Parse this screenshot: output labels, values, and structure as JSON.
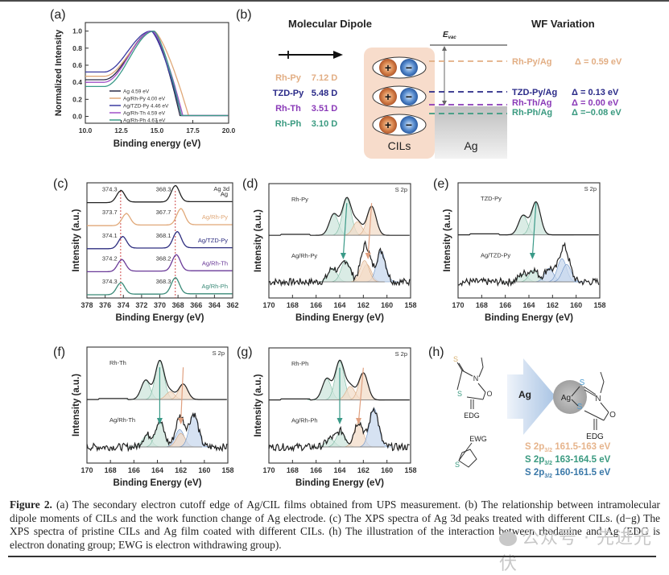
{
  "panel_labels": {
    "a": "(a)",
    "b": "(b)",
    "c": "(c)",
    "d": "(d)",
    "e": "(e)",
    "f": "(f)",
    "g": "(g)",
    "h": "(h)"
  },
  "chart_data": [
    {
      "id": "a",
      "type": "line",
      "title": "",
      "xlabel": "Binding energy (eV)",
      "ylabel": "Normalized Intensity",
      "xlim": [
        10.0,
        20.0
      ],
      "ylim": [
        -0.08,
        1.1
      ],
      "xticks": [
        "10.0",
        "12.5",
        "15.0",
        "17.5",
        "20.0"
      ],
      "xtick_values": [
        10.0,
        12.5,
        15.0,
        17.5,
        20.0
      ],
      "yticks": [
        "0.0",
        "0.2",
        "0.4",
        "0.6",
        "0.8",
        "1.0"
      ],
      "ytick_values": [
        0.0,
        0.2,
        0.4,
        0.6,
        0.8,
        1.0
      ],
      "legend_position": "bottom-left",
      "series": [
        {
          "name": "Ag 4.59 eV",
          "color": "#2a2a45",
          "baseline": 0.43,
          "peak_x": 14.7,
          "cutoff": 16.6
        },
        {
          "name": "Ag/Rh-Py 4.00 eV",
          "color": "#e0a878",
          "baseline": 0.47,
          "peak_x": 14.8,
          "cutoff": 17.2
        },
        {
          "name": "Ag/TZD-Py 4.46 eV",
          "color": "#3a3aa0",
          "baseline": 0.52,
          "peak_x": 14.6,
          "cutoff": 16.7
        },
        {
          "name": "Ag/Rh-Th 4.59 eV",
          "color": "#a050c8",
          "baseline": 0.4,
          "peak_x": 14.7,
          "cutoff": 16.8
        },
        {
          "name": "Ag/Rh-Ph 4.67 eV",
          "color": "#3a9a88",
          "baseline": 0.35,
          "peak_x": 14.8,
          "cutoff": 16.7
        }
      ]
    },
    {
      "id": "c",
      "type": "line",
      "title": "Ag 3d",
      "xlabel": "Binding Energy (eV)",
      "ylabel": "Intensity (a.u.)",
      "xlim": [
        378,
        362
      ],
      "xticks": [
        "378",
        "376",
        "374",
        "372",
        "370",
        "368",
        "366",
        "364",
        "362"
      ],
      "xtick_values": [
        378,
        376,
        374,
        372,
        370,
        368,
        366,
        364,
        362
      ],
      "reference_lines": [
        374.3,
        368.3
      ],
      "series": [
        {
          "name": "Ag",
          "color": "#222222",
          "peak1": 374.3,
          "peak2": 368.3,
          "label1": "374.3",
          "label2": "368.3"
        },
        {
          "name": "Ag/Rh-Py",
          "color": "#e0a878",
          "peak1": 373.7,
          "peak2": 367.7,
          "label1": "373.7",
          "label2": "367.7"
        },
        {
          "name": "Ag/TZD-Py",
          "color": "#2e2e80",
          "peak1": 374.1,
          "peak2": 368.1,
          "label1": "374.1",
          "label2": "368.1"
        },
        {
          "name": "Ag/Rh-Th",
          "color": "#6a3a98",
          "peak1": 374.2,
          "peak2": 368.2,
          "label1": "374.2",
          "label2": "368.2"
        },
        {
          "name": "Ag/Rh-Ph",
          "color": "#3a8a78",
          "peak1": 374.3,
          "peak2": 368.3,
          "label1": "374.3",
          "label2": "368.3"
        }
      ]
    },
    {
      "id": "d",
      "type": "line",
      "title": "S 2p",
      "xlabel": "Binding Energy (eV)",
      "ylabel": "Intensity (a.u.)",
      "xlim": [
        170,
        158
      ],
      "xticks": [
        "170",
        "168",
        "166",
        "164",
        "162",
        "160",
        "158"
      ],
      "xtick_values": [
        170,
        168,
        166,
        164,
        162,
        160,
        158
      ],
      "top_label": "Rh-Py",
      "bottom_label": "Ag/Rh-Py",
      "top_peaks": [
        {
          "x": 164.5,
          "h": 0.55,
          "c": "green"
        },
        {
          "x": 163.4,
          "h": 0.95,
          "c": "green"
        },
        {
          "x": 162.5,
          "h": 0.35,
          "c": "orange"
        },
        {
          "x": 161.3,
          "h": 0.75,
          "c": "orange"
        }
      ],
      "bottom_peaks": [
        {
          "x": 164.6,
          "h": 0.35,
          "c": "green"
        },
        {
          "x": 163.5,
          "h": 0.55,
          "c": "green"
        },
        {
          "x": 161.7,
          "h": 0.45,
          "c": "orange"
        },
        {
          "x": 160.5,
          "h": 0.8,
          "c": "blue"
        },
        {
          "x": 161.9,
          "h": 0.55,
          "c": "orange"
        }
      ],
      "arrows": [
        {
          "from": 163.4,
          "to": 163.7,
          "color": "#3a9a88"
        },
        {
          "from": 161.3,
          "to": 161.6,
          "color": "#e0a080"
        }
      ]
    },
    {
      "id": "e",
      "type": "line",
      "title": "S 2p",
      "xlabel": "Binding Energy (eV)",
      "ylabel": "Intensity (a.u.)",
      "xlim": [
        170,
        158
      ],
      "xticks": [
        "170",
        "168",
        "166",
        "164",
        "162",
        "160",
        "158"
      ],
      "xtick_values": [
        170,
        168,
        166,
        164,
        162,
        160,
        158
      ],
      "top_label": "TZD-Py",
      "bottom_label": "Ag/TZD-Py",
      "top_peaks": [
        {
          "x": 164.5,
          "h": 0.5,
          "c": "green"
        },
        {
          "x": 163.4,
          "h": 0.85,
          "c": "green"
        }
      ],
      "bottom_peaks": [
        {
          "x": 164.5,
          "h": 0.2,
          "c": "green"
        },
        {
          "x": 163.6,
          "h": 0.3,
          "c": "green"
        },
        {
          "x": 162.3,
          "h": 0.35,
          "c": "blue"
        },
        {
          "x": 161.2,
          "h": 0.6,
          "c": "blue"
        },
        {
          "x": 160.8,
          "h": 0.45,
          "c": "blue"
        }
      ],
      "arrows": [
        {
          "from": 163.4,
          "to": 163.7,
          "color": "#3a9a88"
        }
      ]
    },
    {
      "id": "f",
      "type": "line",
      "title": "S 2p",
      "xlabel": "Binding Energy (eV)",
      "ylabel": "Intensity (a.u.)",
      "xlim": [
        170,
        158
      ],
      "xticks": [
        "170",
        "168",
        "166",
        "164",
        "162",
        "160",
        "158"
      ],
      "xtick_values": [
        170,
        168,
        166,
        164,
        162,
        160,
        158
      ],
      "top_label": "Rh-Th",
      "bottom_label": "Ag/Rh-Th",
      "top_peaks": [
        {
          "x": 165.0,
          "h": 0.5,
          "c": "green"
        },
        {
          "x": 163.8,
          "h": 1.0,
          "c": "green"
        },
        {
          "x": 162.9,
          "h": 0.2,
          "c": "orange"
        },
        {
          "x": 161.8,
          "h": 0.4,
          "c": "orange"
        }
      ],
      "bottom_peaks": [
        {
          "x": 164.9,
          "h": 0.3,
          "c": "green"
        },
        {
          "x": 163.8,
          "h": 0.65,
          "c": "green"
        },
        {
          "x": 162.1,
          "h": 0.45,
          "c": "blue"
        },
        {
          "x": 162.0,
          "h": 0.35,
          "c": "orange"
        },
        {
          "x": 160.9,
          "h": 0.85,
          "c": "blue"
        }
      ],
      "arrows": [
        {
          "from": 163.8,
          "to": 163.8,
          "color": "#3a9a88"
        },
        {
          "from": 161.8,
          "to": 162.0,
          "color": "#e0a080"
        }
      ]
    },
    {
      "id": "g",
      "type": "line",
      "title": "S 2p",
      "xlabel": "Binding Energy (eV)",
      "ylabel": "Intensity (a.u.)",
      "xlim": [
        170,
        158
      ],
      "xticks": [
        "170",
        "168",
        "166",
        "164",
        "162",
        "160",
        "158"
      ],
      "xtick_values": [
        170,
        168,
        166,
        164,
        162,
        160,
        158
      ],
      "top_label": "Rh-Ph",
      "bottom_label": "Ag/Rh-Ph",
      "top_peaks": [
        {
          "x": 165.1,
          "h": 0.55,
          "c": "green"
        },
        {
          "x": 164.0,
          "h": 1.0,
          "c": "green"
        },
        {
          "x": 163.1,
          "h": 0.35,
          "c": "orange"
        },
        {
          "x": 162.0,
          "h": 0.7,
          "c": "orange"
        }
      ],
      "bottom_peaks": [
        {
          "x": 164.8,
          "h": 0.2,
          "c": "green"
        },
        {
          "x": 163.9,
          "h": 0.4,
          "c": "green"
        },
        {
          "x": 162.4,
          "h": 0.65,
          "c": "orange"
        },
        {
          "x": 161.1,
          "h": 1.0,
          "c": "blue"
        }
      ],
      "arrows": [
        {
          "from": 164.0,
          "to": 164.0,
          "color": "#3a9a88"
        },
        {
          "from": 162.0,
          "to": 162.4,
          "color": "#e0a080"
        }
      ]
    }
  ],
  "panel_b": {
    "dipole_title": "Molecular Dipole",
    "wf_title": "WF Variation",
    "evac_label": "E",
    "evac_sub": "vac",
    "dipoles": [
      {
        "name": "Rh-Py",
        "value": "7.12 D",
        "color": "#e2ae84"
      },
      {
        "name": "TZD-Py",
        "value": "5.48 D",
        "color": "#2a2a88"
      },
      {
        "name": "Rh-Th",
        "value": "3.51 D",
        "color": "#8a3ab8"
      },
      {
        "name": "Rh-Ph",
        "value": "3.10 D",
        "color": "#3a9a80"
      }
    ],
    "cils_label": "CILs",
    "ag_label": "Ag",
    "plus": "+",
    "minus": "−",
    "levels": [
      {
        "name": "Rh-Py/Ag",
        "delta": "Δ = 0.59 eV",
        "color": "#e2ae84"
      },
      {
        "name": "TZD-Py/Ag",
        "delta": "Δ = 0.13 eV",
        "color": "#2a2a88"
      },
      {
        "name": "Rh-Th/Ag",
        "delta": "Δ = 0.00 eV",
        "color": "#8a3ab8"
      },
      {
        "name": "Rh-Ph/Ag",
        "delta": "Δ =−0.08 eV",
        "color": "#3a9a80"
      }
    ]
  },
  "panel_h": {
    "arrow_label": "Ag",
    "ag_circle_label": "Ag",
    "s_atom": "S",
    "n_atom": "N",
    "o_atom": "O",
    "edg": "EDG",
    "ewg": "EWG",
    "ranges": [
      {
        "prefix": "S 2p",
        "sub": "3/2",
        "value": " 161.5-163 eV",
        "color": "#e6b48c"
      },
      {
        "prefix": "S 2p",
        "sub": "3/2",
        "value": " 163-164.5 eV",
        "color": "#3a9a80"
      },
      {
        "prefix": "S 2p",
        "sub": "3/2",
        "value": " 160-161.5 eV",
        "color": "#3a78a8"
      }
    ]
  },
  "caption": {
    "figure_label": "Figure 2.",
    "text": " (a) The secondary electron cutoff edge of Ag/CIL films obtained from UPS measurement. (b) The relationship between intramolecular dipole moments of CILs and the work function change of Ag electrode. (c) The XPS spectra of Ag 3d peaks treated with different CILs. (d−g) The XPS spectra of pristine CILs and Ag film coated with different CILs. (h) The illustration of the interaction between rhodanine and Ag (EDG is electron donating group; EWG is electron withdrawing group)."
  },
  "watermark": "公众号 · 先进光伏"
}
